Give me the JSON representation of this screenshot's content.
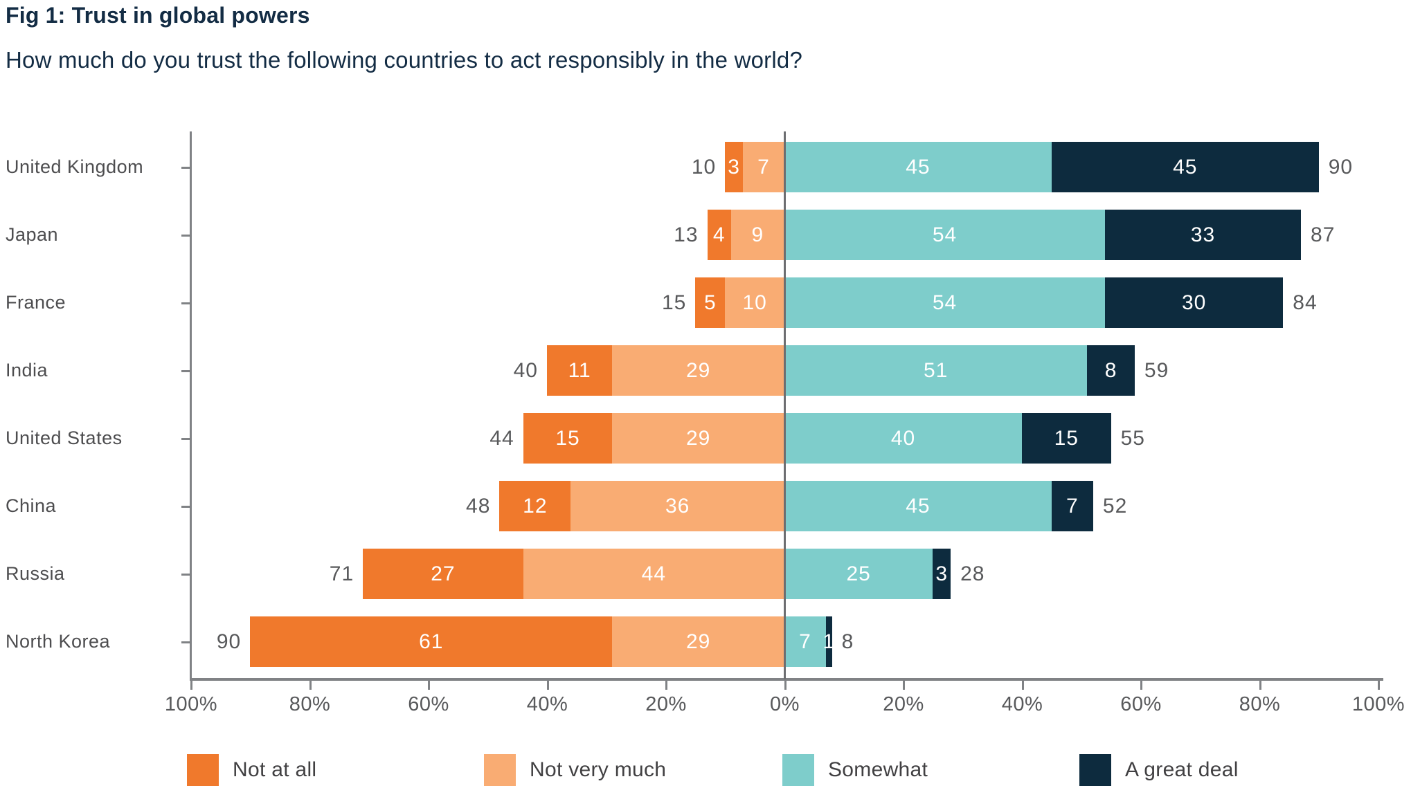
{
  "header": {
    "title": "Fig 1: Trust in global powers",
    "subtitle": "How much do you trust the following countries to act responsibly in the world?"
  },
  "colors": {
    "not_at_all": "#F0792C",
    "not_very_much": "#F9AC73",
    "somewhat": "#7ECDCB",
    "a_great_deal": "#0D2B3E",
    "title_text": "#132C44",
    "axis_text": "#58595B",
    "country_text": "#4D4D4F",
    "axis_line": "#808285",
    "zero_line": "#6D6E71"
  },
  "chart_data": {
    "type": "bar",
    "variant": "diverging_stacked_horizontal",
    "title": "Fig 1: Trust in global powers",
    "subtitle": "How much do you trust the following countries to act responsibly in the world?",
    "categories": [
      "United Kingdom",
      "Japan",
      "France",
      "India",
      "United States",
      "China",
      "Russia",
      "North Korea"
    ],
    "series": [
      {
        "name": "Not at all",
        "side": "left",
        "color": "#F0792C",
        "values": [
          3,
          4,
          5,
          11,
          15,
          12,
          27,
          61
        ]
      },
      {
        "name": "Not very much",
        "side": "left",
        "color": "#F9AC73",
        "values": [
          7,
          9,
          10,
          29,
          29,
          36,
          44,
          29
        ]
      },
      {
        "name": "Somewhat",
        "side": "right",
        "color": "#7ECDCB",
        "values": [
          45,
          54,
          54,
          51,
          40,
          45,
          25,
          7
        ]
      },
      {
        "name": "A great deal",
        "side": "right",
        "color": "#0D2B3E",
        "values": [
          45,
          33,
          30,
          8,
          15,
          7,
          3,
          1
        ]
      }
    ],
    "left_totals": [
      10,
      13,
      15,
      40,
      44,
      48,
      71,
      90
    ],
    "right_totals": [
      90,
      87,
      84,
      59,
      55,
      52,
      28,
      8
    ],
    "x_axis": {
      "tick_labels": [
        "100%",
        "80%",
        "60%",
        "40%",
        "20%",
        "0%",
        "20%",
        "40%",
        "60%",
        "80%",
        "100%"
      ],
      "range": [
        -100,
        100
      ],
      "grid": false
    },
    "legend_position": "bottom",
    "legend": [
      "Not at all",
      "Not very much",
      "Somewhat",
      "A great deal"
    ]
  }
}
